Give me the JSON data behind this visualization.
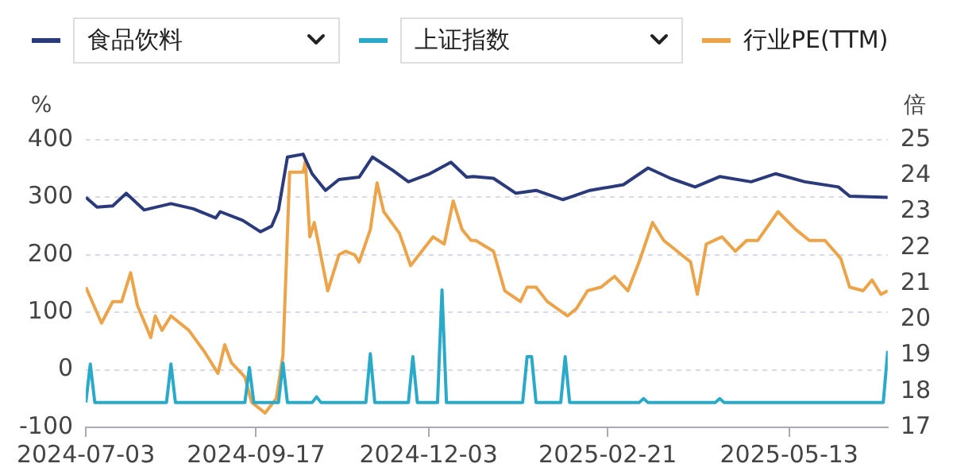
{
  "chart_data": {
    "type": "line",
    "ylabel": "%",
    "y2label": "倍",
    "legend": "top",
    "grid": "y",
    "line_style": "solid",
    "marker": "none",
    "xlim": [
      "2024-07-03",
      "2025-06-26"
    ],
    "xticks": [
      "2024-07-03",
      "2024-09-17",
      "2024-12-03",
      "2025-02-21",
      "2025-05-13"
    ],
    "ylim": [
      -100,
      400
    ],
    "yticks": [
      -100,
      0,
      100,
      200,
      300,
      400
    ],
    "y2lim": [
      17,
      25
    ],
    "y2ticks": [
      17,
      18,
      19,
      20,
      21,
      22,
      23,
      24,
      25
    ],
    "series": [
      {
        "name": "食品饮料",
        "color": "#2b3a7a",
        "x": [
          "2024-07-03",
          "2024-07-08",
          "2024-07-15",
          "2024-07-21",
          "2024-07-29",
          "2024-08-10",
          "2024-08-20",
          "2024-08-30",
          "2024-09-01",
          "2024-09-11",
          "2024-09-19",
          "2024-09-24",
          "2024-09-27",
          "2024-10-01",
          "2024-10-08",
          "2024-10-12",
          "2024-10-18",
          "2024-10-24",
          "2024-11-02",
          "2024-11-08",
          "2024-11-17",
          "2024-11-24",
          "2024-12-03",
          "2024-12-13",
          "2024-12-20",
          "2024-12-23",
          "2025-01-01",
          "2025-01-11",
          "2025-01-20",
          "2025-02-01",
          "2025-02-13",
          "2025-02-28",
          "2025-03-11",
          "2025-03-21",
          "2025-04-01",
          "2025-04-12",
          "2025-04-26",
          "2025-05-07",
          "2025-05-20",
          "2025-06-04",
          "2025-06-09",
          "2025-06-26"
        ],
        "values": [
          300,
          283,
          285,
          307,
          278,
          289,
          280,
          264,
          275,
          260,
          240,
          250,
          278,
          370,
          375,
          341,
          312,
          331,
          335,
          370,
          347,
          327,
          340,
          361,
          335,
          336,
          333,
          307,
          312,
          296,
          312,
          322,
          351,
          333,
          318,
          336,
          327,
          341,
          327,
          318,
          302,
          300
        ]
      },
      {
        "name": "上证指数",
        "color": "#2aaac8",
        "x": [
          "2024-07-03",
          "2024-07-05",
          "2024-07-07",
          "2024-08-08",
          "2024-08-10",
          "2024-08-12",
          "2024-09-12",
          "2024-09-14",
          "2024-09-16",
          "2024-09-27",
          "2024-09-29",
          "2024-10-01",
          "2024-10-12",
          "2024-10-14",
          "2024-10-16",
          "2024-11-05",
          "2024-11-07",
          "2024-11-09",
          "2024-11-24",
          "2024-11-26",
          "2024-11-28",
          "2024-12-07",
          "2024-12-09",
          "2024-12-11",
          "2025-01-14",
          "2025-01-16",
          "2025-01-18",
          "2025-01-20",
          "2025-01-31",
          "2025-02-02",
          "2025-02-04",
          "2025-03-07",
          "2025-03-09",
          "2025-03-11",
          "2025-04-10",
          "2025-04-12",
          "2025-04-14",
          "2025-06-24",
          "2025-06-26"
        ],
        "values": [
          -57,
          10,
          -57,
          -57,
          10,
          -57,
          -57,
          4,
          -57,
          -57,
          12,
          -57,
          -57,
          -47,
          -57,
          -57,
          28,
          -57,
          -57,
          23,
          -57,
          -57,
          139,
          -57,
          -57,
          23,
          23,
          -57,
          -57,
          23,
          -57,
          -57,
          -50,
          -57,
          -57,
          -50,
          -57,
          -57,
          33
        ]
      },
      {
        "name": "行业PE(TTM)",
        "color": "#eba44a",
        "axis": "y2",
        "x": [
          "2024-07-03",
          "2024-07-10",
          "2024-07-15",
          "2024-07-19",
          "2024-07-23",
          "2024-07-26",
          "2024-08-01",
          "2024-08-03",
          "2024-08-06",
          "2024-08-10",
          "2024-08-18",
          "2024-08-25",
          "2024-08-31",
          "2024-09-03",
          "2024-09-06",
          "2024-09-12",
          "2024-09-15",
          "2024-09-21",
          "2024-09-26",
          "2024-09-29",
          "2024-10-02",
          "2024-10-08",
          "2024-10-09",
          "2024-10-11",
          "2024-10-13",
          "2024-10-19",
          "2024-10-24",
          "2024-10-27",
          "2024-10-31",
          "2024-11-02",
          "2024-11-07",
          "2024-11-10",
          "2024-11-13",
          "2024-11-20",
          "2024-11-25",
          "2024-11-30",
          "2024-12-05",
          "2024-12-10",
          "2024-12-14",
          "2024-12-18",
          "2024-12-22",
          "2024-12-24",
          "2025-01-01",
          "2025-01-06",
          "2025-01-13",
          "2025-01-16",
          "2025-01-20",
          "2025-01-25",
          "2025-02-03",
          "2025-02-07",
          "2025-02-12",
          "2025-02-18",
          "2025-02-24",
          "2025-03-02",
          "2025-03-07",
          "2025-03-13",
          "2025-03-18",
          "2025-03-24",
          "2025-03-30",
          "2025-04-02",
          "2025-04-06",
          "2025-04-13",
          "2025-04-19",
          "2025-04-24",
          "2025-04-29",
          "2025-05-08",
          "2025-05-16",
          "2025-05-22",
          "2025-05-29",
          "2025-06-05",
          "2025-06-09",
          "2025-06-15",
          "2025-06-19",
          "2025-06-23",
          "2025-06-26"
        ],
        "values": [
          20.9,
          19.9,
          20.5,
          20.5,
          21.3,
          20.4,
          19.5,
          20.1,
          19.7,
          20.1,
          19.7,
          19.1,
          18.5,
          19.3,
          18.8,
          18.4,
          17.7,
          17.4,
          17.8,
          19.0,
          24.1,
          24.1,
          24.4,
          22.3,
          22.7,
          20.8,
          21.8,
          21.9,
          21.8,
          21.6,
          22.5,
          23.8,
          23.0,
          22.4,
          21.5,
          21.9,
          22.3,
          22.1,
          23.3,
          22.5,
          22.2,
          22.2,
          21.9,
          20.8,
          20.5,
          20.9,
          20.9,
          20.5,
          20.1,
          20.3,
          20.8,
          20.9,
          21.2,
          20.8,
          21.6,
          22.7,
          22.2,
          21.9,
          21.6,
          20.7,
          22.1,
          22.3,
          21.9,
          22.2,
          22.2,
          23.0,
          22.5,
          22.2,
          22.2,
          21.7,
          20.9,
          20.8,
          21.1,
          20.7,
          20.8
        ]
      }
    ]
  }
}
